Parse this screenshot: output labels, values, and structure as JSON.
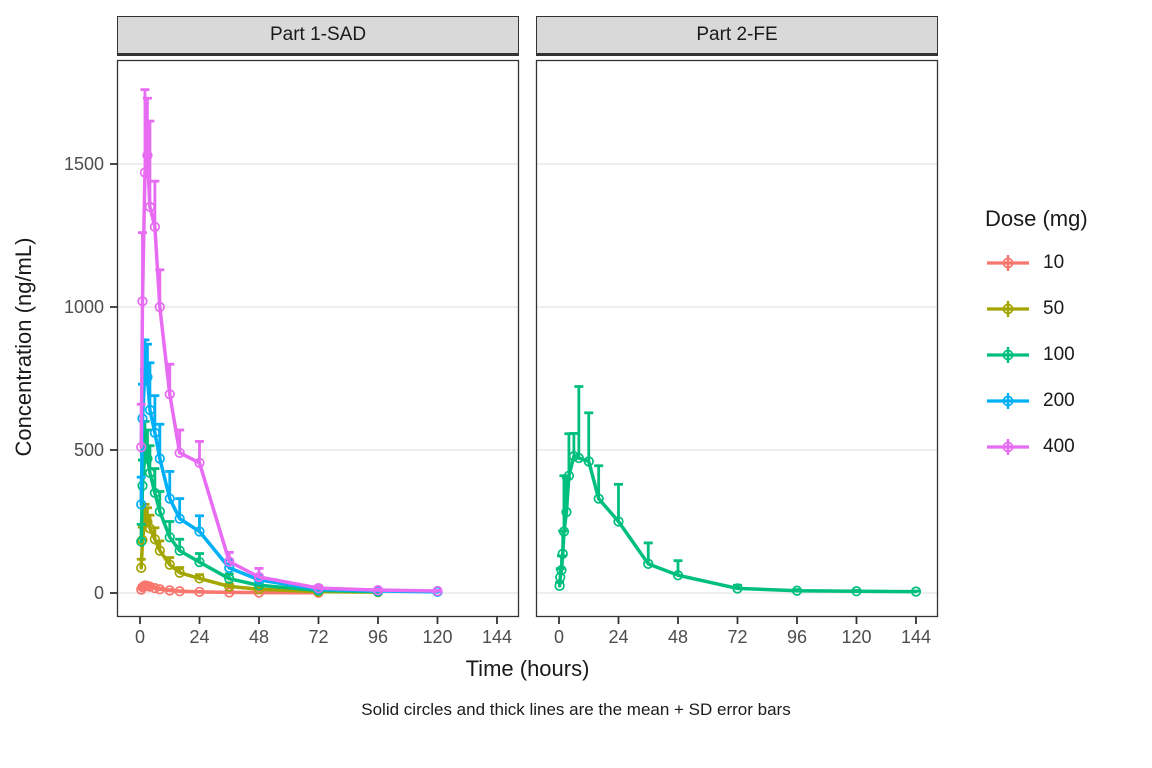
{
  "figure": {
    "background": "#ffffff",
    "caption": "Solid circles and thick lines are the mean + SD error bars"
  },
  "axes": {
    "x_title": "Time (hours)",
    "y_title": "Concentration (ng/mL)",
    "x_ticks": [
      0,
      24,
      48,
      72,
      96,
      120,
      144
    ],
    "y_ticks": [
      0,
      500,
      1000,
      1500
    ],
    "x_lim": [
      0,
      144
    ],
    "y_lim": [
      0,
      1760
    ],
    "grid": "horizontal-major-only",
    "tick_color": "#4d4d4d",
    "gridline_color": "#e8e8e8",
    "panel_border_color": "#333333",
    "strip_background": "#d9d9d9"
  },
  "legend": {
    "title": "Dose (mg)",
    "position": "right",
    "entries": [
      {
        "label": "10",
        "color": "#F8766D"
      },
      {
        "label": "50",
        "color": "#A3A500"
      },
      {
        "label": "100",
        "color": "#00BF7D"
      },
      {
        "label": "200",
        "color": "#00B0F6"
      },
      {
        "label": "400",
        "color": "#E76BF3"
      }
    ]
  },
  "chart_data": {
    "type": "line",
    "error_bars": "mean + SD (upper cap only)",
    "marker": "open-circle",
    "panels": [
      {
        "label": "Part 1-SAD",
        "series": [
          {
            "name": "10",
            "color": "#F8766D",
            "x": [
              0.5,
              1,
              2,
              3,
              4,
              6,
              8,
              12,
              16,
              24,
              36,
              48,
              72
            ],
            "mean": [
              12,
              20,
              26,
              25,
              22,
              17,
              13,
              9,
              6,
              4,
              2,
              1.5,
              1
            ],
            "sd": [
              4,
              6,
              8,
              7,
              6,
              5,
              4,
              3,
              2,
              1.5,
              1,
              1,
              0.5
            ]
          },
          {
            "name": "50",
            "color": "#A3A500",
            "x": [
              0.5,
              1,
              2,
              3,
              4,
              6,
              8,
              12,
              16,
              24,
              36,
              48,
              72,
              96
            ],
            "mean": [
              88,
              185,
              255,
              248,
              226,
              188,
              148,
              99,
              71,
              51,
              23,
              13,
              5,
              3
            ],
            "sd": [
              30,
              45,
              55,
              50,
              46,
              40,
              34,
              25,
              18,
              13,
              8,
              5,
              2,
              1
            ]
          },
          {
            "name": "100",
            "color": "#00BF7D",
            "x": [
              0.5,
              1,
              2,
              3,
              4,
              6,
              8,
              12,
              16,
              24,
              36,
              48,
              72,
              96
            ],
            "mean": [
              180,
              375,
              490,
              470,
              420,
              350,
              285,
              195,
              148,
              108,
              50,
              27,
              9,
              5
            ],
            "sd": [
              60,
              90,
              110,
              100,
              95,
              85,
              70,
              55,
              40,
              30,
              17,
              9,
              4,
              2
            ]
          },
          {
            "name": "200",
            "color": "#00B0F6",
            "x": [
              0.5,
              1,
              2,
              3,
              4,
              6,
              8,
              12,
              16,
              24,
              36,
              48,
              72,
              96,
              120
            ],
            "mean": [
              310,
              610,
              780,
              755,
              640,
              560,
              470,
              330,
              260,
              215,
              88,
              46,
              13,
              7,
              4
            ],
            "sd": [
              95,
              120,
              105,
              115,
              165,
              130,
              120,
              95,
              70,
              55,
              28,
              16,
              5,
              3,
              2
            ]
          },
          {
            "name": "400",
            "color": "#E76BF3",
            "x": [
              0.5,
              1,
              2,
              3,
              4,
              6,
              8,
              12,
              16,
              24,
              36,
              48,
              72,
              96,
              120
            ],
            "mean": [
              510,
              1020,
              1470,
              1530,
              1350,
              1280,
              1000,
              695,
              490,
              455,
              110,
              56,
              17,
              10,
              7
            ],
            "sd": [
              150,
              240,
              290,
              200,
              300,
              160,
              130,
              105,
              80,
              75,
              32,
              30,
              8,
              4,
              2
            ]
          }
        ]
      },
      {
        "label": "Part 2-FE",
        "series": [
          {
            "name": "100",
            "color": "#00BF7D",
            "x": [
              0.25,
              0.5,
              1,
              1.5,
              2,
              3,
              4,
              6,
              8,
              12,
              16,
              24,
              36,
              48,
              72,
              96,
              120,
              144
            ],
            "mean": [
              25,
              55,
              80,
              137,
              215,
              283,
              410,
              478,
              472,
              460,
              330,
              250,
              102,
              62,
              16,
              8,
              6,
              5
            ],
            "sd": [
              12,
              30,
              50,
              80,
              195,
              120,
              147,
              80,
              250,
              170,
              115,
              130,
              73,
              51,
              11,
              4,
              3,
              2
            ]
          }
        ]
      }
    ]
  }
}
